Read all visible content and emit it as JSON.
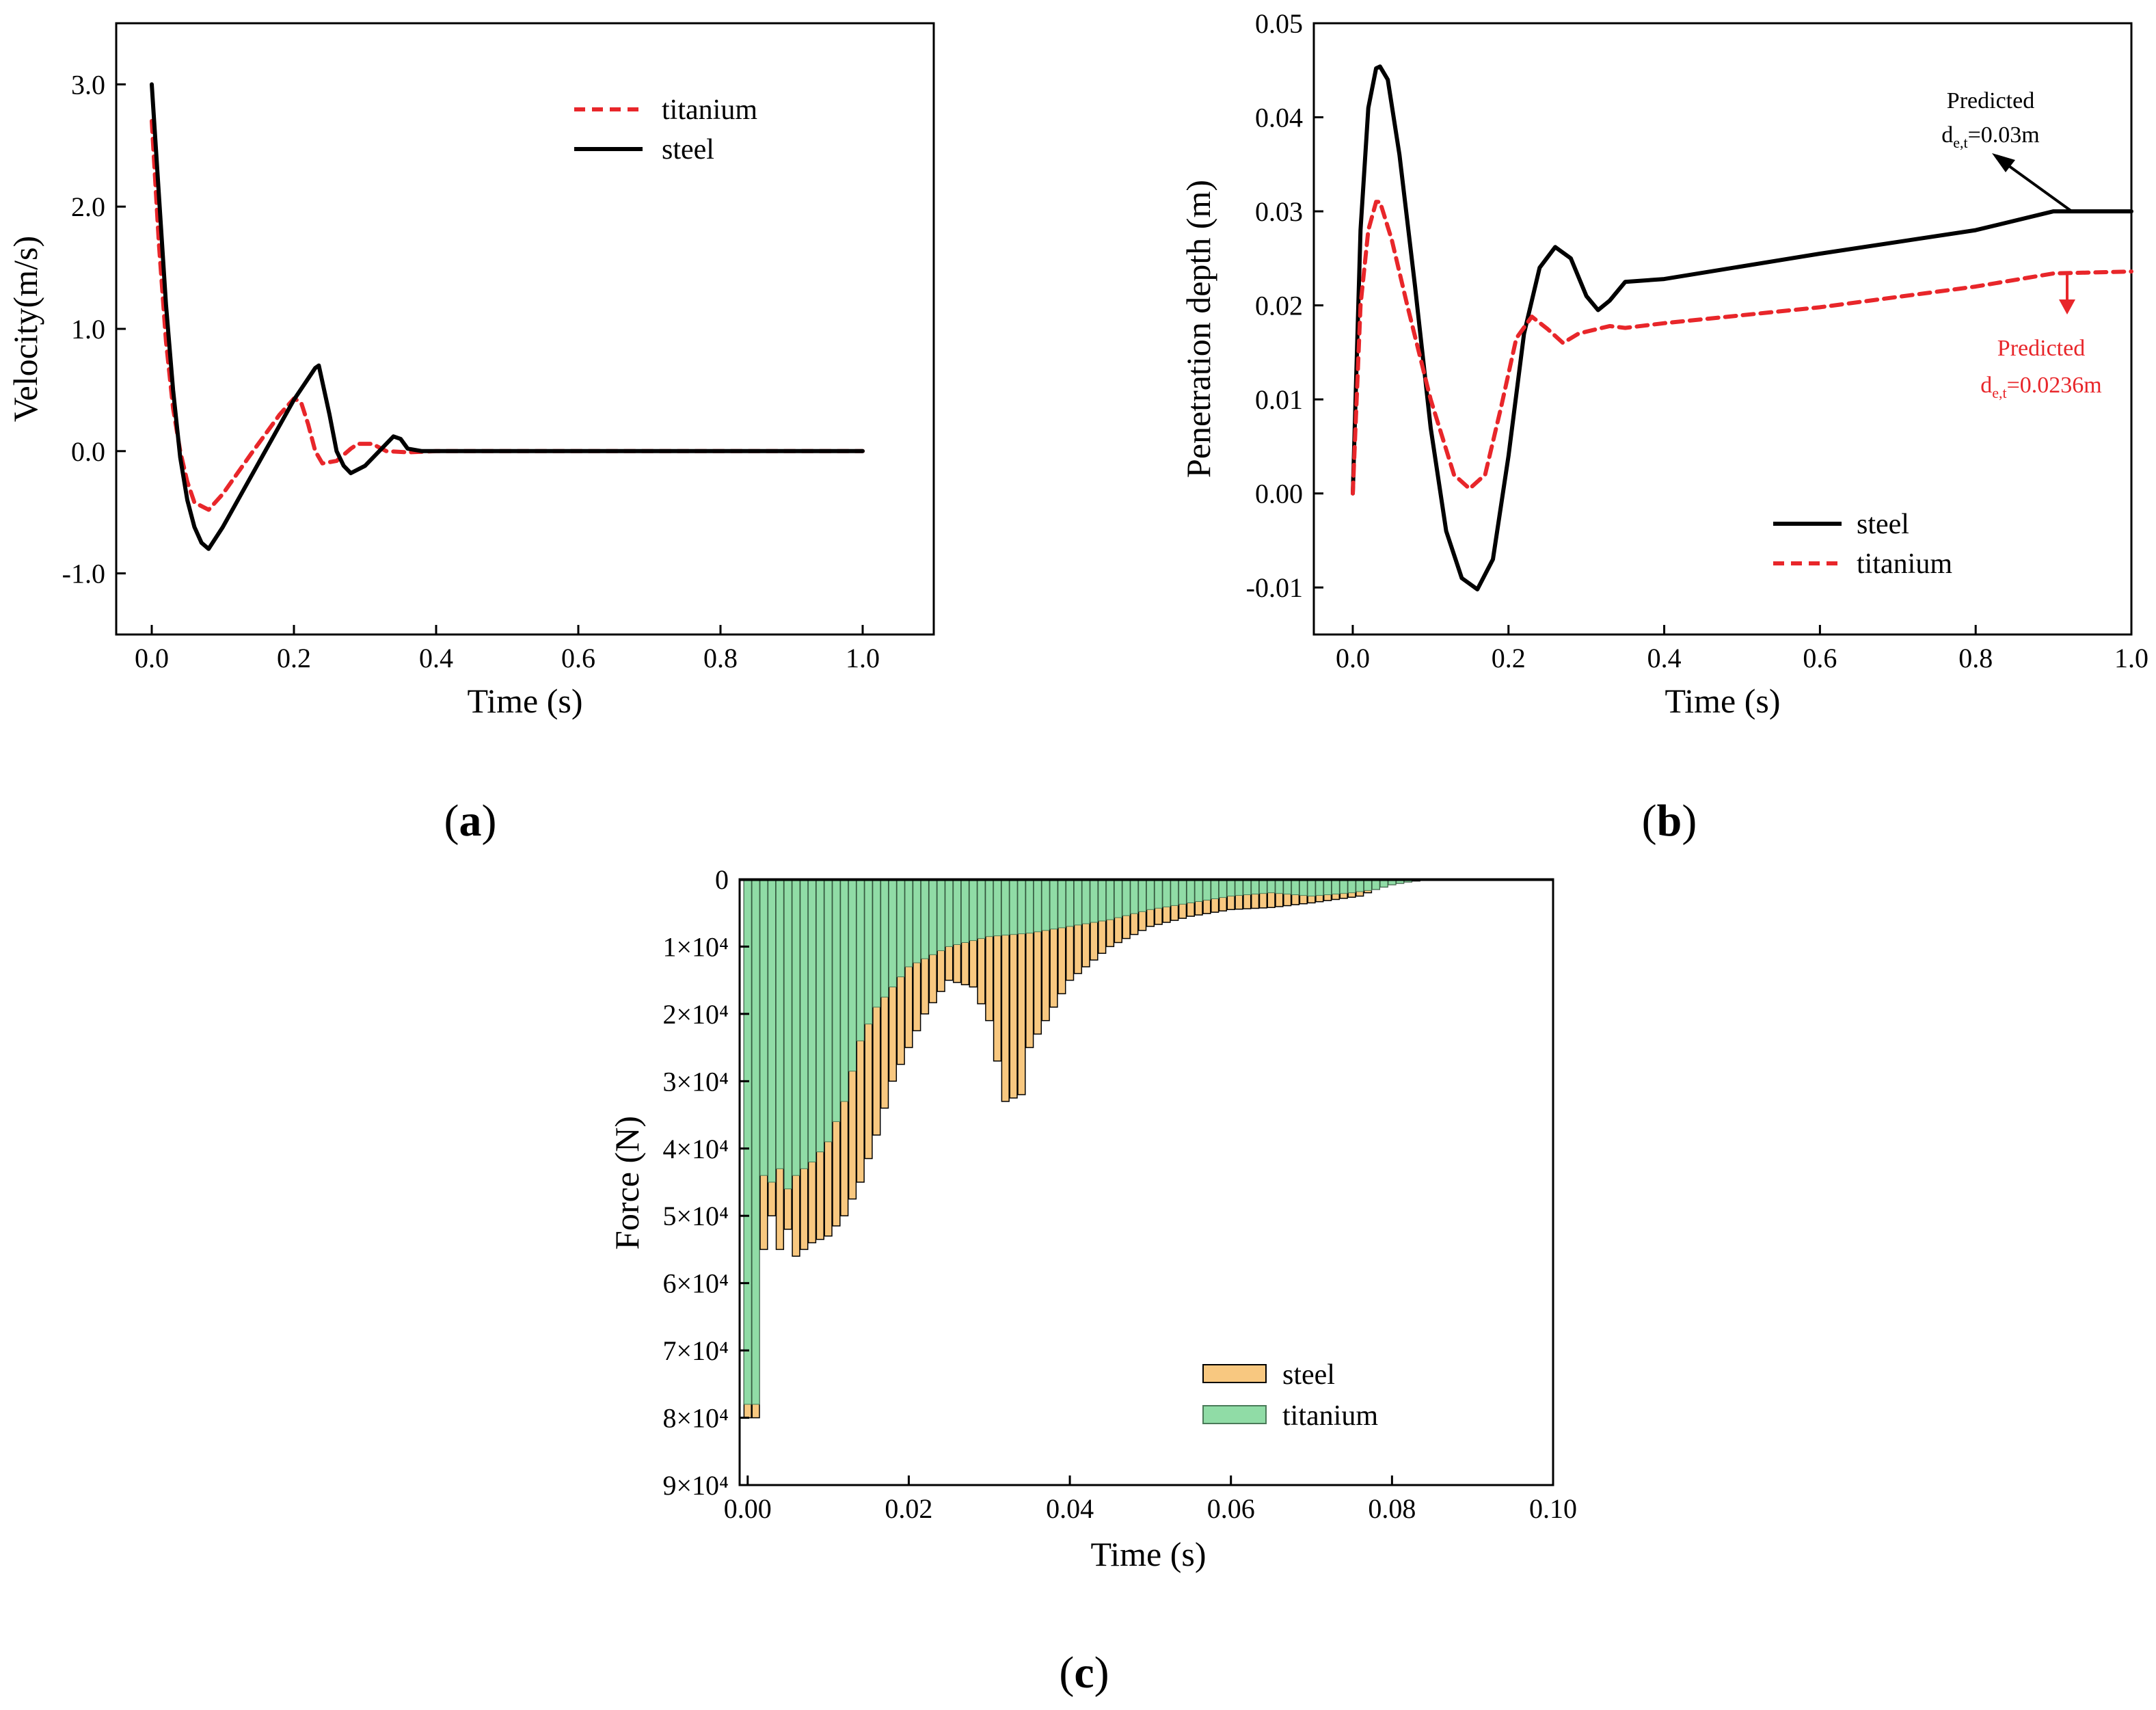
{
  "chart_data": [
    {
      "id": "a",
      "type": "line",
      "panel_label": "a",
      "xlabel": "Time (s)",
      "ylabel": "Velocity(m/s)",
      "xlim": [
        -0.05,
        1.1
      ],
      "ylim": [
        -1.5,
        3.5
      ],
      "xticks": [
        0.0,
        0.2,
        0.4,
        0.6,
        0.8,
        1.0
      ],
      "xtick_labels": [
        "0.0",
        "0.2",
        "0.4",
        "0.6",
        "0.8",
        "1.0"
      ],
      "yticks": [
        -1.0,
        0.0,
        1.0,
        2.0,
        3.0
      ],
      "ytick_labels": [
        "-1.0",
        "0.0",
        "1.0",
        "2.0",
        "3.0"
      ],
      "legend_position": "top-right",
      "series": [
        {
          "name": "titanium",
          "color": "#e8262a",
          "style": "dashed",
          "x": [
            0.0,
            0.01,
            0.02,
            0.03,
            0.04,
            0.05,
            0.06,
            0.08,
            0.1,
            0.14,
            0.18,
            0.2,
            0.21,
            0.22,
            0.23,
            0.24,
            0.26,
            0.28,
            0.29,
            0.31,
            0.33,
            0.36,
            0.4,
            0.5,
            0.7,
            1.0
          ],
          "y": [
            2.7,
            1.7,
            0.9,
            0.35,
            0.0,
            -0.25,
            -0.42,
            -0.48,
            -0.35,
            -0.02,
            0.3,
            0.43,
            0.4,
            0.22,
            0.0,
            -0.1,
            -0.08,
            0.02,
            0.06,
            0.06,
            0.0,
            -0.01,
            0.0,
            0.0,
            0.0,
            0.0
          ]
        },
        {
          "name": "steel",
          "color": "#000000",
          "style": "solid",
          "x": [
            0.0,
            0.01,
            0.02,
            0.03,
            0.04,
            0.05,
            0.06,
            0.07,
            0.08,
            0.1,
            0.15,
            0.2,
            0.23,
            0.235,
            0.25,
            0.26,
            0.27,
            0.28,
            0.3,
            0.32,
            0.34,
            0.35,
            0.36,
            0.38,
            0.4,
            0.5,
            0.7,
            1.0
          ],
          "y": [
            3.0,
            2.1,
            1.2,
            0.5,
            -0.05,
            -0.4,
            -0.62,
            -0.75,
            -0.8,
            -0.62,
            -0.1,
            0.42,
            0.68,
            0.7,
            0.3,
            0.0,
            -0.12,
            -0.18,
            -0.12,
            0.0,
            0.12,
            0.1,
            0.02,
            0.0,
            0.0,
            0.0,
            0.0,
            0.0
          ]
        }
      ]
    },
    {
      "id": "b",
      "type": "line",
      "panel_label": "b",
      "xlabel": "Time (s)",
      "ylabel": "Penetration depth (m)",
      "xlim": [
        -0.05,
        1.0
      ],
      "ylim": [
        -0.015,
        0.05
      ],
      "xticks": [
        0.0,
        0.2,
        0.4,
        0.6,
        0.8,
        1.0
      ],
      "xtick_labels": [
        "0.0",
        "0.2",
        "0.4",
        "0.6",
        "0.8",
        "1.0"
      ],
      "yticks": [
        -0.01,
        0.0,
        0.01,
        0.02,
        0.03,
        0.04,
        0.05
      ],
      "ytick_labels": [
        "-0.01",
        "0.00",
        "0.01",
        "0.02",
        "0.03",
        "0.04",
        "0.05"
      ],
      "legend_position": "bottom-right",
      "series": [
        {
          "name": "steel",
          "color": "#000000",
          "style": "solid",
          "x": [
            0.0,
            0.01,
            0.02,
            0.03,
            0.035,
            0.045,
            0.06,
            0.08,
            0.1,
            0.12,
            0.14,
            0.16,
            0.18,
            0.2,
            0.22,
            0.24,
            0.26,
            0.28,
            0.3,
            0.315,
            0.33,
            0.35,
            0.4,
            0.6,
            0.8,
            0.9,
            1.0
          ],
          "y": [
            0.0,
            0.028,
            0.041,
            0.0452,
            0.0454,
            0.044,
            0.036,
            0.022,
            0.007,
            -0.004,
            -0.009,
            -0.0102,
            -0.007,
            0.004,
            0.017,
            0.024,
            0.0262,
            0.025,
            0.021,
            0.0195,
            0.0205,
            0.0225,
            0.0228,
            0.0255,
            0.028,
            0.03,
            0.03
          ]
        },
        {
          "name": "titanium",
          "color": "#e8262a",
          "style": "dashed",
          "x": [
            0.0,
            0.01,
            0.02,
            0.03,
            0.035,
            0.05,
            0.07,
            0.1,
            0.13,
            0.15,
            0.17,
            0.19,
            0.21,
            0.23,
            0.25,
            0.27,
            0.29,
            0.3,
            0.33,
            0.35,
            0.4,
            0.6,
            0.8,
            0.9,
            1.0
          ],
          "y": [
            0.0,
            0.02,
            0.028,
            0.031,
            0.031,
            0.027,
            0.02,
            0.01,
            0.002,
            0.0005,
            0.002,
            0.009,
            0.0165,
            0.0188,
            0.0175,
            0.016,
            0.017,
            0.0172,
            0.0178,
            0.0176,
            0.0181,
            0.0198,
            0.022,
            0.0234,
            0.0236
          ]
        }
      ],
      "annotations": [
        {
          "line1": "Predicted",
          "line2_main": "d",
          "line2_sub": "e,t",
          "line2_rest": "=0.03m",
          "color": "#000000"
        },
        {
          "line1": "Predicted",
          "line2_main": "d",
          "line2_sub": "e,t",
          "line2_rest": "=0.0236m",
          "color": "#e8262a"
        }
      ]
    },
    {
      "id": "c",
      "type": "bar",
      "panel_label": "c",
      "xlabel": "Time (s)",
      "ylabel": "Force (N)",
      "xlim": [
        -0.001,
        0.1
      ],
      "ylim": [
        0,
        90000
      ],
      "y_inverted": true,
      "xticks": [
        0.0,
        0.02,
        0.04,
        0.06,
        0.08,
        0.1
      ],
      "xtick_labels": [
        "0.00",
        "0.02",
        "0.04",
        "0.06",
        "0.08",
        "0.10"
      ],
      "yticks": [
        0,
        10000,
        20000,
        30000,
        40000,
        50000,
        60000,
        70000,
        80000,
        90000
      ],
      "ytick_labels": [
        "0",
        "1×10⁴",
        "2×10⁴",
        "3×10⁴",
        "4×10⁴",
        "5×10⁴",
        "6×10⁴",
        "7×10⁴",
        "8×10⁴",
        "9×10⁴"
      ],
      "legend_position": "bottom-right",
      "bar_step": 0.001,
      "steel_envelope": {
        "x": [
          0.0,
          0.001,
          0.002,
          0.003,
          0.004,
          0.005,
          0.006,
          0.008,
          0.01,
          0.012,
          0.014,
          0.016,
          0.018,
          0.02,
          0.022,
          0.025,
          0.028,
          0.03,
          0.032,
          0.034,
          0.035,
          0.038,
          0.04,
          0.045,
          0.05,
          0.055,
          0.06,
          0.065,
          0.07,
          0.073,
          0.076,
          0.078,
          0.08,
          0.082,
          0.084,
          0.085,
          0.086
        ],
        "y": [
          80000,
          80000,
          55000,
          50000,
          55000,
          52000,
          56000,
          54000,
          53000,
          50000,
          45000,
          38000,
          30000,
          25000,
          20000,
          15000,
          16000,
          21000,
          33000,
          32000,
          25000,
          19000,
          15000,
          10000,
          7000,
          5500,
          4500,
          4200,
          3500,
          3000,
          2500,
          1500,
          800,
          400,
          100,
          20,
          0
        ]
      },
      "titanium_envelope": {
        "x": [
          0.0,
          0.001,
          0.002,
          0.003,
          0.004,
          0.005,
          0.006,
          0.008,
          0.01,
          0.012,
          0.014,
          0.016,
          0.018,
          0.02,
          0.025,
          0.03,
          0.035,
          0.04,
          0.045,
          0.05,
          0.055,
          0.06,
          0.065,
          0.07,
          0.075,
          0.078,
          0.08,
          0.083,
          0.086
        ],
        "y": [
          78000,
          78000,
          44000,
          45000,
          43000,
          46000,
          44000,
          42000,
          39000,
          33000,
          24000,
          19000,
          16000,
          13000,
          10000,
          8500,
          8000,
          7000,
          6000,
          4500,
          3500,
          2500,
          2000,
          2500,
          2000,
          1500,
          800,
          200,
          0
        ]
      },
      "series": [
        {
          "name": "steel",
          "color": "#f8c880",
          "edge": "#000000"
        },
        {
          "name": "titanium",
          "color": "#90dca6",
          "edge": "#4a7a58"
        }
      ]
    }
  ]
}
